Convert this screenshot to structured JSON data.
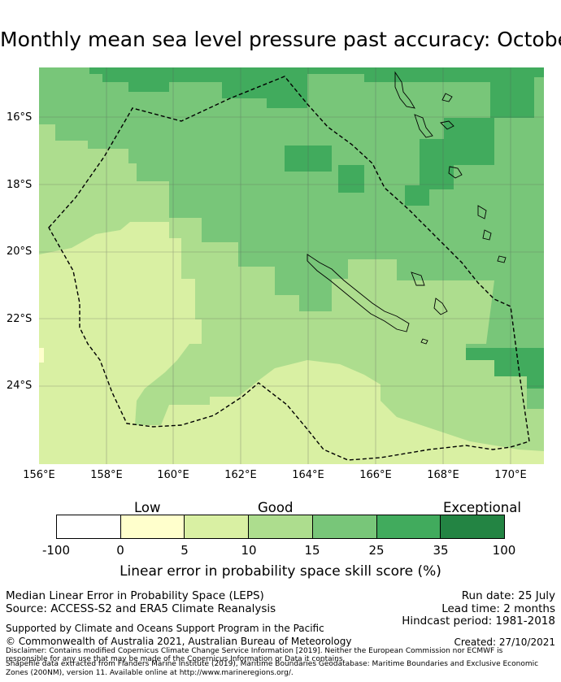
{
  "title": "Monthly mean sea level pressure past accuracy: October",
  "map": {
    "lat_labels": [
      "16°S",
      "18°S",
      "20°S",
      "22°S",
      "24°S"
    ],
    "lon_labels": [
      "156°E",
      "158°E",
      "160°E",
      "162°E",
      "164°E",
      "166°E",
      "168°E",
      "170°E"
    ]
  },
  "colorbar": {
    "categories": [
      "Low",
      "Good",
      "Exceptional"
    ],
    "ticks": [
      "-100",
      "0",
      "5",
      "10",
      "15",
      "25",
      "35",
      "100"
    ],
    "colors": [
      "#ffffff",
      "#ffffcc",
      "#d9f0a3",
      "#addd8e",
      "#78c679",
      "#41ab5d",
      "#238443"
    ],
    "title": "Linear error in probability space skill score (%)"
  },
  "footer": {
    "method": "Median Linear Error in Probability Space (LEPS)",
    "source": "Source: ACCESS-S2 and ERA5 Climate Reanalysis",
    "run_date": "Run date: 25 July",
    "lead_time": "Lead time: 2 months",
    "hindcast": "Hindcast period: 1981-2018",
    "support": "Supported by Climate and Oceans Support Program in the Pacific",
    "copyright": "© Commonwealth of Australia 2021, Australian Bureau of Meteorology",
    "created": "Created: 27/10/2021",
    "disclaimer1": "Disclaimer: Contains modified Copernicus Climate Change Service Information [2019]. Neither the European Commission nor ECMWF is",
    "disclaimer2": "responsible for any use that may be made of the Copernicus Information or Data it contains.",
    "shapefile1": "Shapefile data extracted from Flanders Marine Institute (2019), Maritime Boundaries Geodatabase: Maritime Boundaries and Exclusive Economic",
    "shapefile2": "Zones (200NM), version 11. Available online at http://www.marineregions.org/."
  }
}
